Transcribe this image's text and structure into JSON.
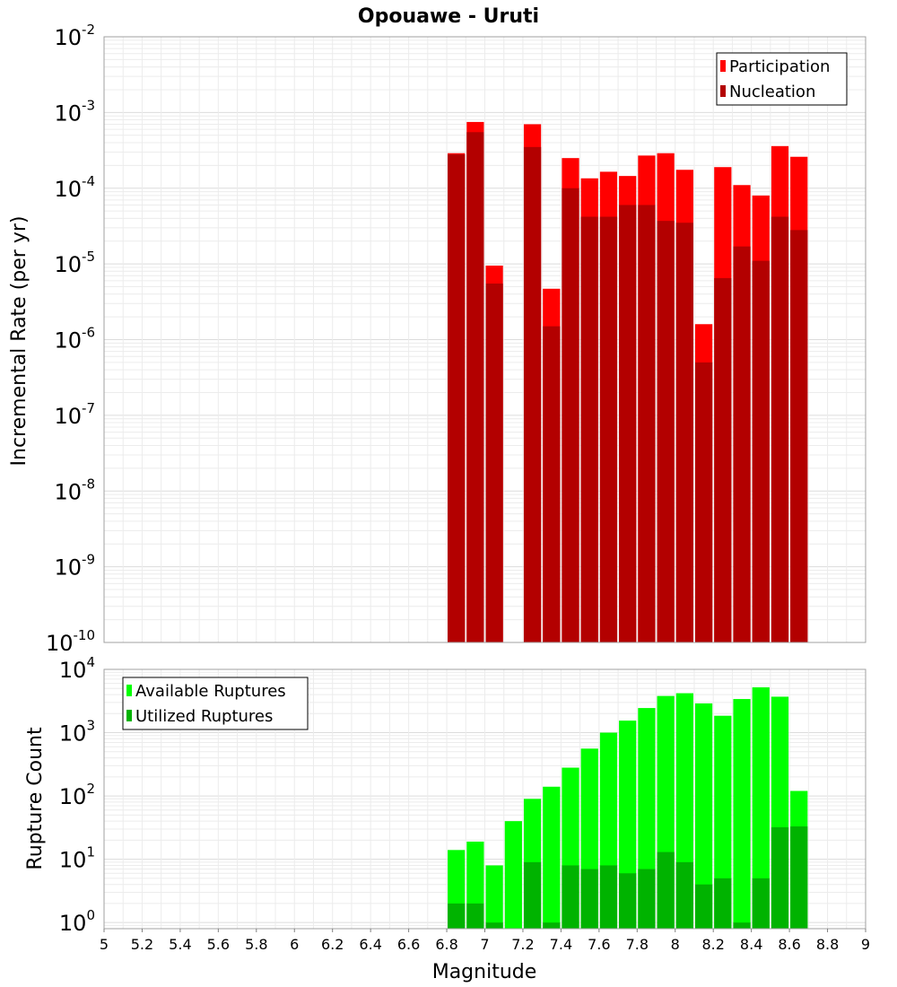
{
  "chart_data": [
    {
      "type": "bar",
      "title": "Opouawe - Uruti",
      "ylabel": "Incremental Rate (per yr)",
      "xlabel": "",
      "yscale": "log",
      "ylim": [
        1e-10,
        0.01
      ],
      "xlim": [
        5,
        9
      ],
      "grid": true,
      "legend_position": "top-right",
      "bin_width": 0.1,
      "bin_centers": [
        6.85,
        6.95,
        7.05,
        7.15,
        7.25,
        7.35,
        7.45,
        7.55,
        7.65,
        7.75,
        7.85,
        7.95,
        8.05,
        8.15,
        8.25,
        8.35,
        8.45,
        8.55,
        8.65
      ],
      "series": [
        {
          "name": "Participation",
          "color": "#ff0000",
          "values": [
            0.00029,
            0.00075,
            9.5e-06,
            null,
            0.0007,
            4.7e-06,
            0.00025,
            0.000135,
            0.000165,
            0.000145,
            0.00027,
            0.00029,
            0.000175,
            1.6e-06,
            0.00019,
            0.00011,
            8e-05,
            0.00036,
            0.00026
          ]
        },
        {
          "name": "Nucleation",
          "color": "#b30000",
          "values": [
            0.00028,
            0.00055,
            5.5e-06,
            null,
            0.00035,
            1.5e-06,
            0.0001,
            4.2e-05,
            4.2e-05,
            6e-05,
            6e-05,
            3.7e-05,
            3.5e-05,
            5e-07,
            6.5e-06,
            1.7e-05,
            1.1e-05,
            4.2e-05,
            2.8e-05
          ]
        }
      ],
      "yticks": [
        {
          "base": "10",
          "exp": "-10"
        },
        {
          "base": "10",
          "exp": "-9"
        },
        {
          "base": "10",
          "exp": "-8"
        },
        {
          "base": "10",
          "exp": "-7"
        },
        {
          "base": "10",
          "exp": "-6"
        },
        {
          "base": "10",
          "exp": "-5"
        },
        {
          "base": "10",
          "exp": "-4"
        },
        {
          "base": "10",
          "exp": "-3"
        },
        {
          "base": "10",
          "exp": "-2"
        }
      ]
    },
    {
      "type": "bar",
      "title": "",
      "ylabel": "Rupture Count",
      "xlabel": "Magnitude",
      "yscale": "log",
      "ylim": [
        0.8,
        10000
      ],
      "xlim": [
        5,
        9
      ],
      "grid": true,
      "legend_position": "top-left",
      "bin_width": 0.1,
      "bin_centers": [
        6.85,
        6.95,
        7.05,
        7.15,
        7.25,
        7.35,
        7.45,
        7.55,
        7.65,
        7.75,
        7.85,
        7.95,
        8.05,
        8.15,
        8.25,
        8.35,
        8.45,
        8.55,
        8.65
      ],
      "series": [
        {
          "name": "Available Ruptures",
          "color": "#00ff00",
          "values": [
            14,
            19,
            8,
            40,
            90,
            140,
            280,
            560,
            1000,
            1550,
            2450,
            3800,
            4200,
            2900,
            1850,
            3400,
            5200,
            3700,
            120
          ]
        },
        {
          "name": "Utilized Ruptures",
          "color": "#00b300",
          "values": [
            2,
            2,
            1,
            null,
            9,
            1,
            8,
            7,
            8,
            6,
            7,
            13,
            9,
            4,
            5,
            1,
            5,
            32,
            33
          ]
        }
      ],
      "yticks": [
        {
          "base": "10",
          "exp": "0"
        },
        {
          "base": "10",
          "exp": "1"
        },
        {
          "base": "10",
          "exp": "2"
        },
        {
          "base": "10",
          "exp": "3"
        },
        {
          "base": "10",
          "exp": "4"
        }
      ],
      "xticks": [
        "5",
        "5.2",
        "5.4",
        "5.6",
        "5.8",
        "6",
        "6.2",
        "6.4",
        "6.6",
        "6.8",
        "7",
        "7.2",
        "7.4",
        "7.6",
        "7.8",
        "8",
        "8.2",
        "8.4",
        "8.6",
        "8.8",
        "9"
      ]
    }
  ]
}
